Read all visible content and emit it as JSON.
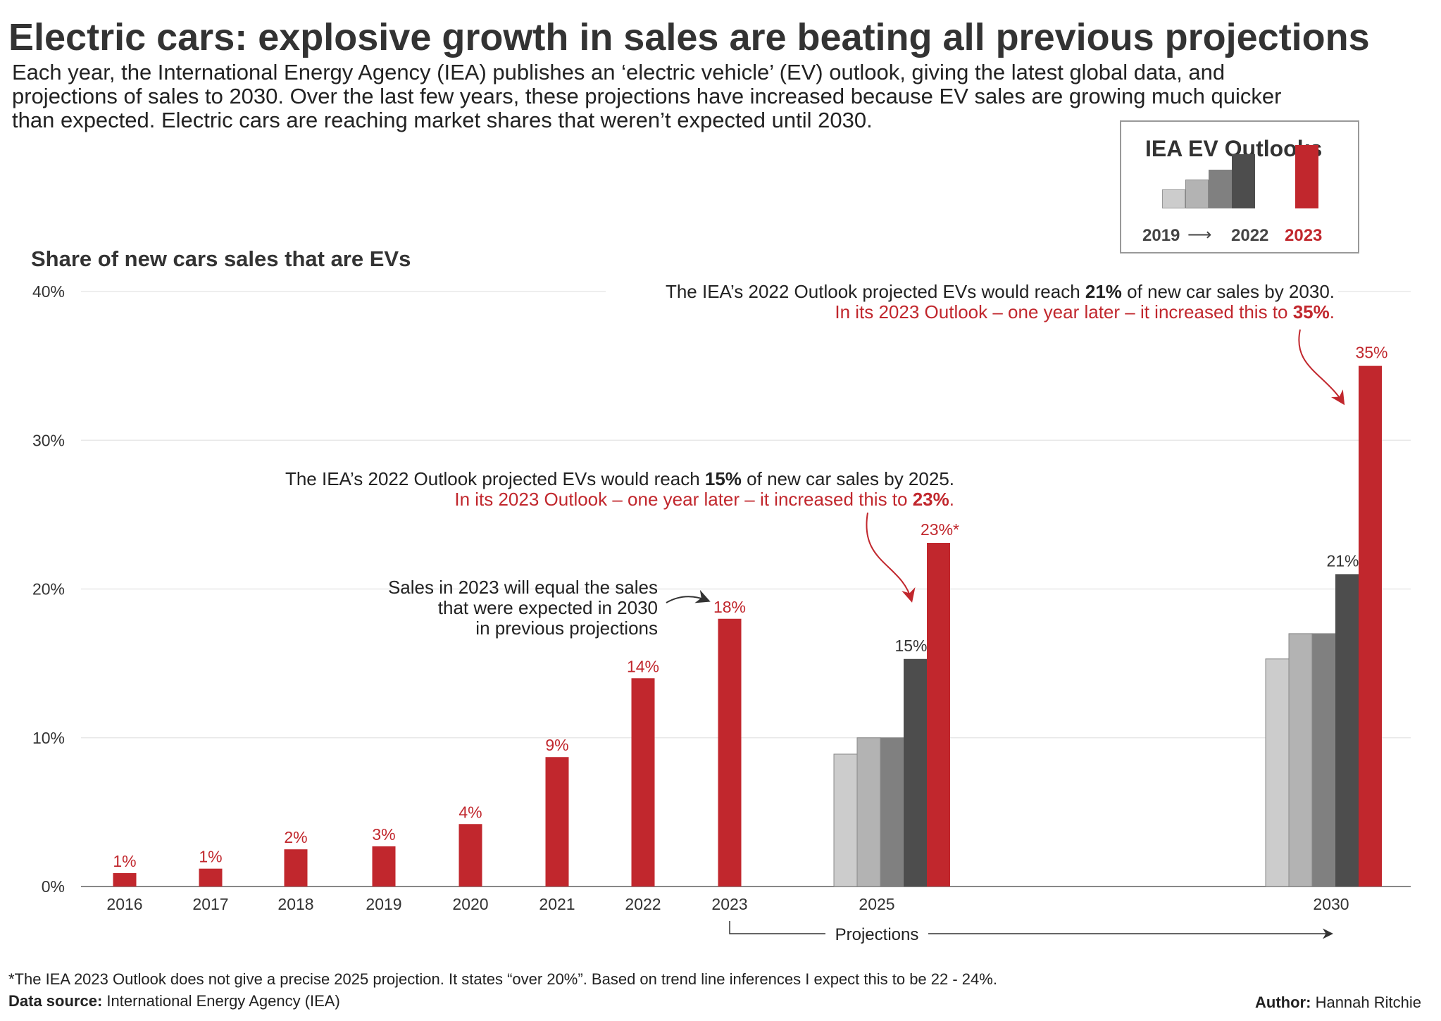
{
  "title": "Electric cars: explosive growth in sales are beating all previous projections",
  "subtitle": [
    "Each year, the International Energy Agency (IEA) publishes an ‘electric vehicle’ (EV) outlook, giving the latest global data, and",
    "projections of sales to 2030. Over the last few years, these projections have increased because EV sales are growing much quicker",
    "than expected. Electric cars are reaching market shares that weren’t expected until 2030."
  ],
  "legend": {
    "title": "IEA EV Outlooks",
    "from_label": "2019",
    "to_label": "2022",
    "current_label": "2023",
    "colors": [
      "#cccccc",
      "#b3b3b3",
      "#808080",
      "#4d4d4d",
      "#c1272d"
    ]
  },
  "colors": {
    "red": "#c1272d",
    "dark": "#333333",
    "grid": "#e8e8e8"
  },
  "chart_data": {
    "type": "bar",
    "title": "Share of new cars sales that are EVs",
    "ylabel": "",
    "xlabel": "",
    "ylim": [
      0,
      40
    ],
    "yticks": [
      "0%",
      "10%",
      "20%",
      "30%",
      "40%"
    ],
    "historical": {
      "categories": [
        "2016",
        "2017",
        "2018",
        "2019",
        "2020",
        "2021",
        "2022",
        "2023"
      ],
      "values": [
        0.9,
        1.2,
        2.5,
        2.7,
        4.2,
        8.7,
        14,
        18
      ],
      "labels": [
        "1%",
        "1%",
        "2%",
        "3%",
        "4%",
        "9%",
        "14%",
        "18%"
      ]
    },
    "projections": {
      "categories": [
        "2025",
        "2030"
      ],
      "series": [
        {
          "name": "2019 Outlook",
          "values": [
            8.9,
            15.3
          ]
        },
        {
          "name": "2020 Outlook",
          "values": [
            10,
            17
          ]
        },
        {
          "name": "2021 Outlook",
          "values": [
            10,
            17
          ]
        },
        {
          "name": "2022 Outlook",
          "values": [
            15.3,
            21
          ],
          "labels": [
            "15%",
            "21%"
          ]
        },
        {
          "name": "2023 Outlook",
          "values": [
            23.1,
            35
          ],
          "labels": [
            "23%*",
            "35%"
          ]
        }
      ]
    },
    "projections_label": "Projections"
  },
  "annotations": {
    "a2030_pre": "The IEA’s 2022 Outlook projected EVs would reach ",
    "a2030_bold": "21%",
    "a2030_post": " of new car sales by 2030.",
    "a2030_red_pre": "In its 2023 Outlook – one year later – it increased this to ",
    "a2030_red_bold": "35%",
    "a2030_red_post": ".",
    "a2025_pre": "The IEA’s 2022 Outlook projected EVs would reach ",
    "a2025_bold": "15%",
    "a2025_post": " of new car sales by 2025.",
    "a2025_red_pre": "In its 2023 Outlook – one year later – it increased this to ",
    "a2025_red_bold": "23%",
    "a2025_red_post": ".",
    "sales2023": [
      "Sales in 2023 will  equal the sales",
      "that were expected in 2030",
      "in previous projections"
    ]
  },
  "footnote": "*The IEA 2023 Outlook does not give a precise 2025 projection. It states “over 20%”. Based on trend line inferences I expect this to be 22 - 24%.",
  "source_label": "Data source:",
  "source_value": " International Energy Agency (IEA)",
  "author_label": "Author:",
  "author_value": " Hannah Ritchie"
}
